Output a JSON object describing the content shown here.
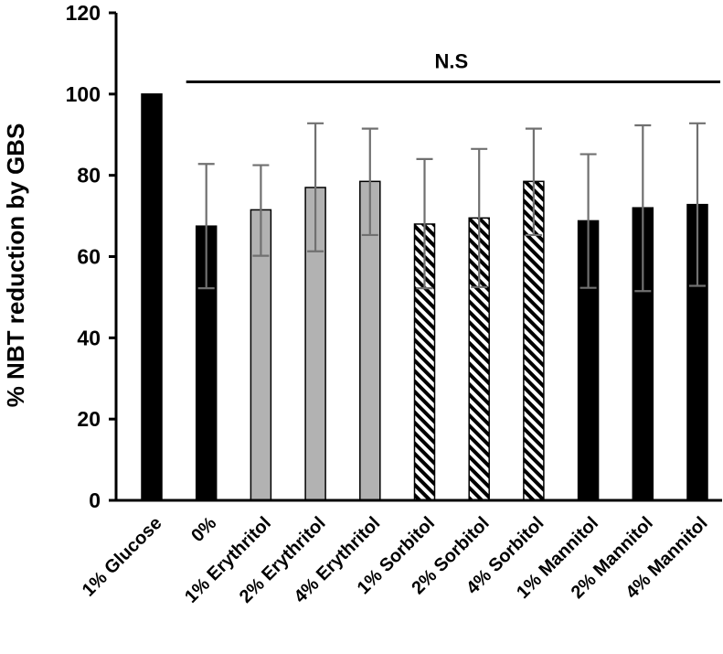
{
  "chart_data": {
    "type": "bar",
    "title": "",
    "xlabel": "",
    "ylabel": "% NBT reduction by GBS",
    "ylim": [
      0,
      120
    ],
    "yticks": [
      0,
      20,
      40,
      60,
      80,
      100,
      120
    ],
    "grid": false,
    "legend": "none",
    "categories": [
      "1% Glucose",
      "0%",
      "1% Erythritol",
      "2% Erythritol",
      "4% Erythritol",
      "1% Sorbitol",
      "2% Sorbitol",
      "4% Sorbitol",
      "1% Mannitol",
      "2% Mannitol",
      "4% Mannitol"
    ],
    "values": [
      100,
      67.5,
      71.5,
      77,
      78.5,
      68,
      69.5,
      78.5,
      68.8,
      72,
      72.8
    ],
    "error_upper": [
      100,
      82.8,
      82.5,
      92.8,
      91.5,
      84,
      86.5,
      91.5,
      85.2,
      92.3,
      92.8
    ],
    "error_lower": [
      100,
      52.2,
      60.2,
      61.3,
      65.3,
      52.2,
      52.5,
      65.3,
      52.3,
      51.5,
      52.8
    ],
    "fills": [
      "solid-black",
      "solid-black",
      "solid-gray",
      "solid-gray",
      "solid-gray",
      "hatched",
      "hatched",
      "hatched",
      "solid-black",
      "solid-black",
      "solid-black"
    ],
    "colors": {
      "black": "#000000",
      "gray": "#b2b2b2",
      "error_bar": "#707070",
      "hatch": "#000000"
    },
    "annotations": [
      {
        "text": "N.S",
        "from_category": 1,
        "to_category": 10,
        "y": 103
      }
    ]
  }
}
